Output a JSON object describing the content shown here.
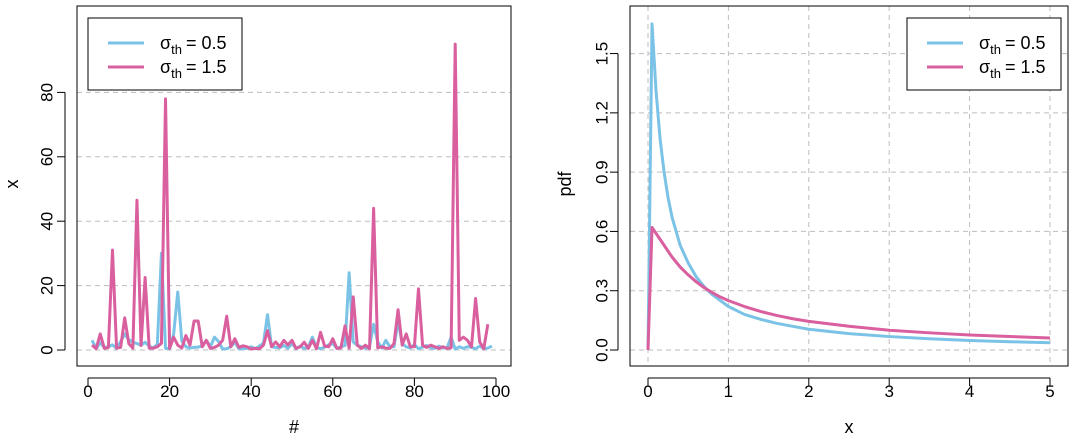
{
  "colors": {
    "series_a": "#7bc3e6",
    "series_b": "#d95f9f"
  },
  "legend": {
    "entries": [
      {
        "symbol": "σ",
        "sub": "th",
        "value": "= 0.5"
      },
      {
        "symbol": "σ",
        "sub": "th",
        "value": "= 1.5"
      }
    ]
  },
  "chart_data": [
    {
      "type": "line",
      "xlabel": "#",
      "ylabel": "x",
      "xlim": [
        0,
        100
      ],
      "ylim": [
        0,
        100
      ],
      "xticks": [
        0,
        20,
        40,
        60,
        80,
        100
      ],
      "yticks": [
        0,
        20,
        40,
        60,
        80
      ],
      "grid": "horizontal-dashed",
      "legend_position": "top-left",
      "series": [
        {
          "values": [
            3.0,
            0.4,
            2.3,
            0.7,
            1.0,
            1.6,
            0.5,
            2.6,
            5.0,
            3.2,
            2.4,
            2.0,
            1.5,
            2.4,
            1.2,
            0.6,
            1.8,
            30.0,
            0.5,
            0.4,
            5.0,
            18.0,
            2.8,
            1.0,
            0.6,
            0.8,
            0.9,
            1.3,
            3.0,
            1.0,
            4.0,
            2.6,
            0.3,
            0.4,
            1.0,
            2.5,
            0.3,
            0.4,
            0.5,
            1.0,
            0.4,
            1.2,
            2.1,
            11.0,
            1.0,
            0.8,
            0.7,
            1.4,
            0.6,
            2.0,
            0.4,
            1.2,
            0.5,
            1.0,
            4.0,
            0.8,
            0.4,
            0.9,
            1.6,
            2.0,
            0.5,
            1.0,
            1.4,
            24.0,
            2.5,
            1.5,
            1.0,
            0.5,
            1.0,
            8.0,
            2.6,
            0.6,
            3.0,
            1.0,
            1.0,
            9.0,
            2.0,
            1.0,
            0.6,
            1.7,
            0.4,
            0.9,
            1.4,
            0.7,
            0.5,
            1.2,
            0.6,
            0.7,
            4.0,
            0.3,
            1.0,
            0.5,
            1.0,
            0.8,
            0.4,
            1.2,
            0.5,
            0.6,
            1.2
          ]
        },
        {
          "values": [
            1.5,
            0.4,
            5.0,
            0.5,
            0.8,
            31.0,
            0.6,
            0.8,
            10.0,
            2.0,
            0.6,
            46.5,
            1.4,
            22.5,
            0.6,
            0.6,
            1.0,
            2.1,
            78.0,
            0.5,
            4.0,
            1.5,
            0.6,
            4.5,
            1.5,
            9.0,
            9.0,
            1.0,
            3.0,
            0.5,
            0.8,
            1.5,
            3.0,
            10.5,
            1.0,
            3.5,
            0.8,
            1.3,
            1.0,
            0.3,
            0.5,
            0.4,
            1.5,
            6.0,
            1.0,
            2.5,
            1.0,
            3.0,
            1.6,
            3.0,
            0.5,
            1.0,
            2.4,
            0.5,
            3.0,
            0.4,
            5.5,
            1.2,
            1.0,
            3.5,
            0.5,
            0.7,
            7.5,
            0.6,
            16.5,
            1.5,
            0.5,
            1.5,
            0.4,
            44.0,
            0.7,
            1.0,
            0.6,
            0.5,
            2.0,
            12.5,
            1.5,
            5.0,
            1.0,
            1.0,
            19.0,
            1.5,
            0.8,
            1.5,
            1.0,
            0.5,
            1.0,
            0.5,
            0.7,
            95.0,
            3.0,
            4.0,
            3.0,
            1.0,
            16.0,
            2.5,
            0.4,
            8.0
          ]
        }
      ]
    },
    {
      "type": "line",
      "xlabel": "x",
      "ylabel": "pdf",
      "xlim": [
        0,
        5
      ],
      "ylim": [
        0,
        1.68
      ],
      "xticks": [
        0,
        1,
        2,
        3,
        4,
        5
      ],
      "yticks": [
        0.0,
        0.3,
        0.6,
        0.9,
        1.2,
        1.5
      ],
      "ytick_labels": [
        "0.0",
        "0.3",
        "0.6",
        "0.9",
        "1.2",
        "1.5"
      ],
      "grid": "both-dashed",
      "legend_position": "top-right",
      "series": [
        {
          "x": [
            0,
            0.05,
            0.1,
            0.15,
            0.2,
            0.25,
            0.3,
            0.4,
            0.5,
            0.6,
            0.7,
            0.8,
            0.9,
            1.0,
            1.2,
            1.4,
            1.6,
            1.8,
            2.0,
            2.5,
            3.0,
            3.5,
            4.0,
            4.5,
            5.0
          ],
          "values": [
            0,
            1.65,
            1.31,
            1.07,
            0.9,
            0.77,
            0.67,
            0.53,
            0.44,
            0.37,
            0.32,
            0.28,
            0.25,
            0.22,
            0.18,
            0.155,
            0.135,
            0.12,
            0.105,
            0.083,
            0.068,
            0.057,
            0.048,
            0.042,
            0.037
          ]
        },
        {
          "x": [
            0,
            0.05,
            0.1,
            0.2,
            0.3,
            0.4,
            0.5,
            0.6,
            0.7,
            0.8,
            0.9,
            1.0,
            1.2,
            1.4,
            1.6,
            1.8,
            2.0,
            2.5,
            3.0,
            3.5,
            4.0,
            4.5,
            5.0
          ],
          "values": [
            0,
            0.62,
            0.59,
            0.53,
            0.47,
            0.42,
            0.38,
            0.345,
            0.315,
            0.29,
            0.268,
            0.25,
            0.22,
            0.195,
            0.175,
            0.158,
            0.145,
            0.12,
            0.1,
            0.087,
            0.076,
            0.068,
            0.061
          ]
        }
      ]
    }
  ]
}
